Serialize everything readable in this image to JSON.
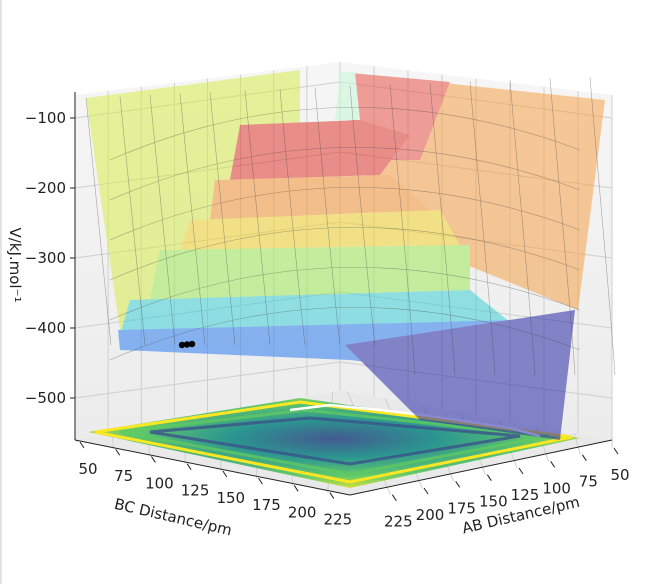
{
  "chart_data": {
    "type": "surface",
    "xlabel": "AB Distance/pm",
    "ylabel": "BC Distance/pm",
    "zlabel": "V/kJ.mol⁻¹",
    "x_ticks": [
      50,
      75,
      100,
      125,
      150,
      175,
      200,
      225
    ],
    "y_ticks": [
      50,
      75,
      100,
      125,
      150,
      175,
      200,
      225
    ],
    "z_ticks": [
      -100,
      -200,
      -300,
      -400,
      -500
    ],
    "xlim": [
      50,
      230
    ],
    "ylim": [
      50,
      230
    ],
    "zlim": [
      -540,
      -80
    ],
    "colormap_surface": "jet",
    "colormap_contour": "viridis",
    "grid": true,
    "trajectory_points": [
      {
        "x": 230,
        "y": 72
      },
      {
        "x": 227,
        "y": 74
      },
      {
        "x": 224,
        "y": 75
      }
    ]
  },
  "colors": {
    "pane": "#f2f2f2",
    "grid": "#cfcfcf",
    "trajectory": "#000000"
  }
}
